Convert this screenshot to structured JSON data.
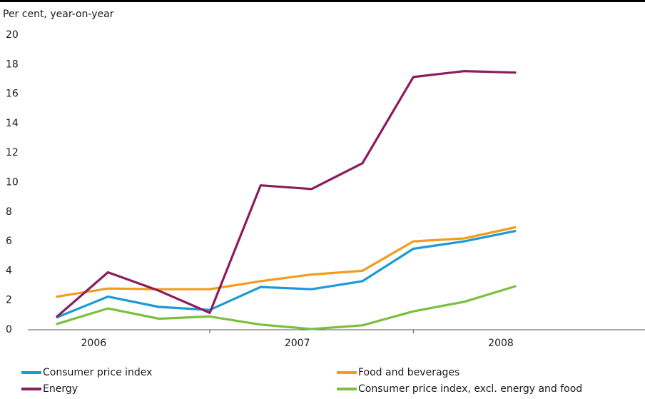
{
  "chart_data": {
    "type": "line",
    "ylabel": "Per cent, year-on-year",
    "ylim": [
      0,
      20
    ],
    "yticks": [
      0,
      2,
      4,
      6,
      8,
      10,
      12,
      14,
      16,
      18,
      20
    ],
    "xlim": [
      2005.75,
      2008.75
    ],
    "xtick_labels": [
      {
        "label": "2006",
        "x": 2006.0
      },
      {
        "label": "2007",
        "x": 2007.0
      },
      {
        "label": "2008",
        "x": 2008.0
      }
    ],
    "x": [
      2005.75,
      2006.0,
      2006.25,
      2006.5,
      2006.75,
      2007.0,
      2007.25,
      2007.5,
      2007.75,
      2008.0
    ],
    "series": [
      {
        "name": "Consumer price index",
        "color": "#1a9ad6",
        "values": [
          0.8,
          2.2,
          1.5,
          1.3,
          2.85,
          2.7,
          3.25,
          5.45,
          5.95,
          6.65
        ]
      },
      {
        "name": "Food and beverages",
        "color": "#f39b1e",
        "values": [
          2.2,
          2.75,
          2.7,
          2.7,
          3.25,
          3.7,
          3.95,
          5.95,
          6.15,
          6.9
        ]
      },
      {
        "name": "Energy",
        "color": "#8b1c5e",
        "values": [
          0.85,
          3.85,
          2.6,
          1.1,
          9.75,
          9.5,
          11.25,
          17.1,
          17.5,
          17.4
        ]
      },
      {
        "name": "Consumer price index, excl. energy and food",
        "color": "#7bbf3f",
        "values": [
          0.35,
          1.4,
          0.7,
          0.85,
          0.3,
          0.0,
          0.25,
          1.2,
          1.85,
          2.9
        ]
      }
    ],
    "grid": false,
    "legend_position": "bottom"
  }
}
